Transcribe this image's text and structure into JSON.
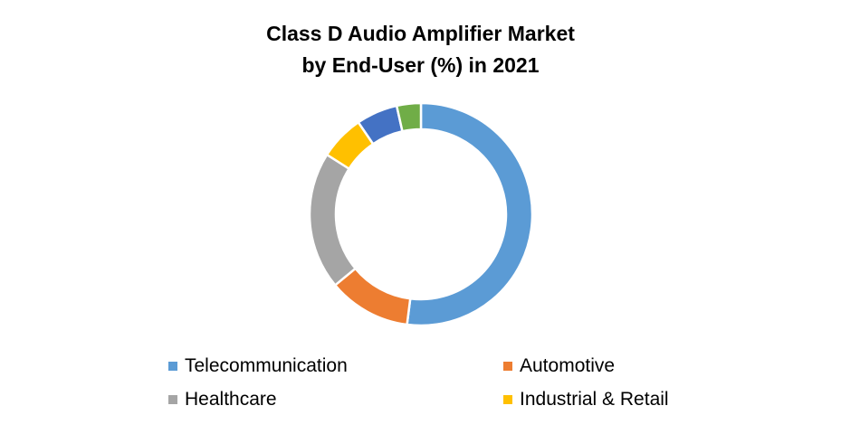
{
  "chart_data": {
    "type": "pie",
    "variant": "donut",
    "title_lines": [
      "Class D Audio Amplifier Market",
      "by End-User (%) in 2021"
    ],
    "series": [
      {
        "name": "Telecommunication",
        "value": 52,
        "color": "#5B9BD5"
      },
      {
        "name": "Automotive",
        "value": 12,
        "color": "#ED7D31"
      },
      {
        "name": "Healthcare",
        "value": 20,
        "color": "#A5A5A5"
      },
      {
        "name": "Industrial & Retail",
        "value": 6.5,
        "color": "#FFC000"
      },
      {
        "name": "",
        "value": 6,
        "color": "#4472C4"
      },
      {
        "name": "",
        "value": 3.5,
        "color": "#70AD47"
      }
    ],
    "legend": {
      "placement": "bottom",
      "entries": [
        "Telecommunication",
        "Automotive",
        "Healthcare",
        "Industrial & Retail"
      ]
    }
  }
}
